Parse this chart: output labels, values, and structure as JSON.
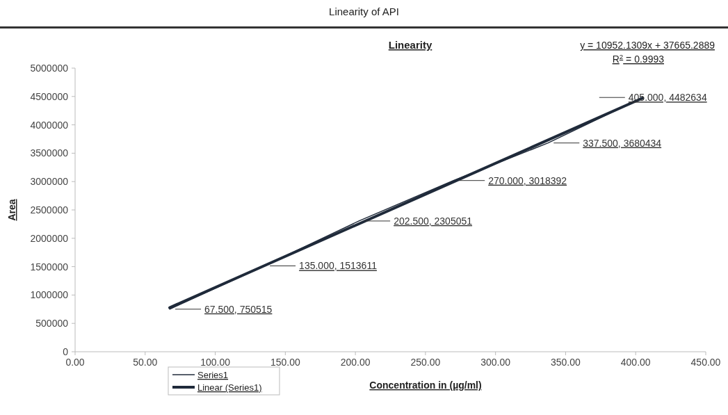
{
  "chart_data": {
    "type": "line",
    "title": "Linearity of API",
    "subtitle": "Linearity",
    "xlabel": "Concentration in (µg/ml)",
    "ylabel": "Area",
    "annotations": [
      "y = 10952.1309x + 37665.2889",
      "R$^{2}$ = 0.9993"
    ],
    "x": [
      67.5,
      135,
      202.5,
      270,
      337.5,
      405
    ],
    "series": [
      {
        "name": "Series1",
        "color": "#1f2a3a",
        "values": [
          750515,
          1513611,
          2305051,
          3018392,
          3680434,
          4482634
        ],
        "value_labels": [
          "67.500, 750515",
          "135.000, 1513611",
          "202.500, 2305051",
          "270.000, 3018392",
          "337.500, 3680434",
          "405.000, 4482634"
        ],
        "line_style": "solid"
      },
      {
        "name": "Linear (Series1)",
        "color": "#1f2a3a",
        "x": [
          67.5,
          405
        ],
        "values": [
          777000,
          4473000
        ],
        "line_style": "solid"
      }
    ],
    "xlim": [
      0,
      450
    ],
    "xticks": [
      {
        "value": 0,
        "label": "0.00"
      },
      {
        "value": 50,
        "label": "50.00"
      },
      {
        "value": 100,
        "label": "100.00"
      },
      {
        "value": 150,
        "label": "150.00"
      },
      {
        "value": 200,
        "label": "200.00"
      },
      {
        "value": 250,
        "label": "250.00"
      },
      {
        "value": 300,
        "label": "300.00"
      },
      {
        "value": 350,
        "label": "350.00"
      },
      {
        "value": 400,
        "label": "400.00"
      },
      {
        "value": 450,
        "label": "450.00"
      }
    ],
    "ylim": [
      0,
      5000000
    ],
    "yticks": [
      0,
      500000,
      1000000,
      1500000,
      2000000,
      2500000,
      3000000,
      3500000,
      4000000,
      4500000,
      5000000
    ],
    "grid": false,
    "legend": "bottom left",
    "marker": "none"
  }
}
